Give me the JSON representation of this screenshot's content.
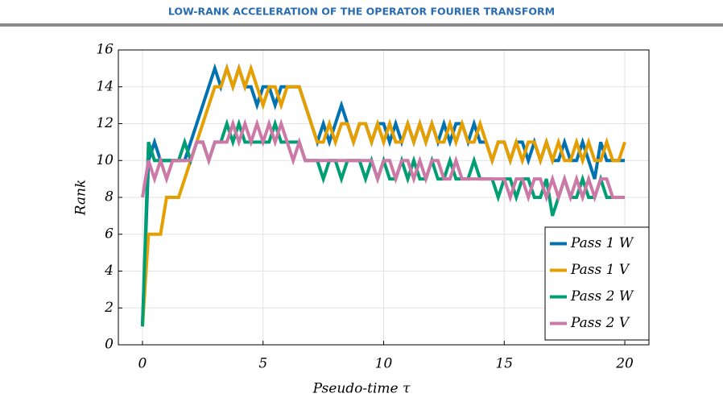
{
  "header": {
    "title": "LOW-RANK ACCELERATION OF THE OPERATOR FOURIER TRANSFORM"
  },
  "chart_data": {
    "type": "line",
    "xlabel": "Pseudo-time τ",
    "ylabel": "Rank",
    "x": [
      0,
      0.25,
      0.5,
      0.75,
      1,
      1.25,
      1.5,
      1.75,
      2,
      2.25,
      2.5,
      2.75,
      3,
      3.25,
      3.5,
      3.75,
      4,
      4.25,
      4.5,
      4.75,
      5,
      5.25,
      5.5,
      5.75,
      6,
      6.25,
      6.5,
      6.75,
      7,
      7.25,
      7.5,
      7.75,
      8,
      8.25,
      8.5,
      8.75,
      9,
      9.25,
      9.5,
      9.75,
      10,
      10.25,
      10.5,
      10.75,
      11,
      11.25,
      11.5,
      11.75,
      12,
      12.25,
      12.5,
      12.75,
      13,
      13.25,
      13.5,
      13.75,
      14,
      14.25,
      14.5,
      14.75,
      15,
      15.25,
      15.5,
      15.75,
      16,
      16.25,
      16.5,
      16.75,
      17,
      17.25,
      17.5,
      17.75,
      18,
      18.25,
      18.5,
      18.75,
      19,
      19.25,
      19.5,
      19.75,
      20
    ],
    "series": [
      {
        "name": "Pass 1 W",
        "color": "#0072b2",
        "values": [
          1,
          10,
          11,
          10,
          10,
          10,
          10,
          10,
          11,
          12,
          13,
          14,
          15,
          14,
          15,
          14,
          15,
          14,
          14,
          13,
          14,
          14,
          13,
          14,
          14,
          14,
          14,
          13,
          12,
          11,
          12,
          11,
          12,
          13,
          12,
          11,
          12,
          12,
          11,
          12,
          12,
          11,
          12,
          11,
          12,
          11,
          12,
          11,
          12,
          11,
          12,
          11,
          12,
          12,
          11,
          12,
          11,
          11,
          10,
          11,
          11,
          10,
          11,
          11,
          10,
          11,
          10,
          11,
          10,
          10,
          11,
          10,
          10,
          11,
          10,
          9,
          11,
          10,
          10,
          10,
          10
        ]
      },
      {
        "name": "Pass 1 V",
        "color": "#e69f00",
        "values": [
          1,
          6,
          6,
          6,
          8,
          8,
          8,
          9,
          10,
          11,
          12,
          13,
          14,
          14,
          15,
          14,
          15,
          14,
          15,
          14,
          13,
          14,
          14,
          13,
          14,
          14,
          14,
          13,
          12,
          11,
          11,
          12,
          11,
          12,
          12,
          11,
          12,
          12,
          11,
          12,
          11,
          12,
          11,
          11,
          12,
          11,
          12,
          11,
          12,
          11,
          11,
          12,
          11,
          12,
          11,
          11,
          12,
          11,
          10,
          11,
          11,
          10,
          11,
          10,
          11,
          11,
          10,
          11,
          10,
          11,
          10,
          10,
          11,
          10,
          11,
          10,
          10,
          11,
          10,
          10,
          11
        ]
      },
      {
        "name": "Pass 2 W",
        "color": "#009e73",
        "values": [
          1,
          11,
          10,
          10,
          10,
          10,
          10,
          11,
          10,
          11,
          11,
          10,
          11,
          11,
          12,
          11,
          12,
          11,
          11,
          11,
          11,
          11,
          12,
          11,
          11,
          11,
          11,
          10,
          10,
          10,
          9,
          10,
          10,
          9,
          10,
          10,
          10,
          9,
          10,
          9,
          10,
          9,
          9,
          10,
          9,
          10,
          9,
          9,
          10,
          9,
          9,
          10,
          9,
          9,
          9,
          10,
          9,
          9,
          9,
          8,
          9,
          9,
          8,
          9,
          9,
          8,
          8,
          9,
          7,
          8,
          9,
          8,
          8,
          9,
          8,
          8,
          9,
          8,
          8,
          8,
          8
        ]
      },
      {
        "name": "Pass 2 V",
        "color": "#cc79a7",
        "values": [
          8,
          10,
          9,
          10,
          9,
          10,
          10,
          10,
          10,
          11,
          11,
          10,
          11,
          11,
          11,
          12,
          11,
          12,
          11,
          12,
          11,
          12,
          11,
          12,
          11,
          10,
          11,
          10,
          10,
          10,
          10,
          10,
          10,
          10,
          10,
          10,
          10,
          10,
          10,
          9,
          10,
          10,
          9,
          10,
          10,
          9,
          10,
          9,
          10,
          10,
          9,
          9,
          10,
          9,
          9,
          9,
          9,
          9,
          9,
          9,
          9,
          8,
          9,
          9,
          8,
          9,
          9,
          8,
          9,
          8,
          9,
          8,
          9,
          8,
          9,
          8,
          9,
          9,
          8,
          8,
          8
        ]
      }
    ],
    "xlim": [
      -1,
      21
    ],
    "ylim": [
      0,
      16
    ],
    "xticks": [
      0,
      5,
      10,
      15,
      20
    ],
    "yticks": [
      0,
      2,
      4,
      6,
      8,
      10,
      12,
      14,
      16
    ],
    "grid": true,
    "legend": "lower right"
  }
}
